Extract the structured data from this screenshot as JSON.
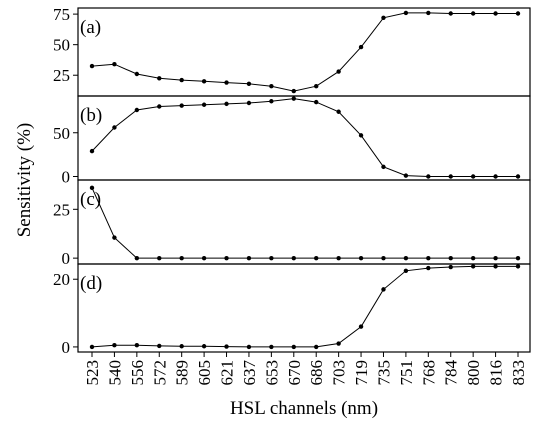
{
  "chart_data": {
    "type": "line",
    "xlabel": "HSL channels (nm)",
    "ylabel": "Sensitivity (%)",
    "categories": [
      "523",
      "540",
      "556",
      "572",
      "589",
      "605",
      "621",
      "637",
      "653",
      "670",
      "686",
      "703",
      "719",
      "735",
      "751",
      "768",
      "784",
      "800",
      "816",
      "833"
    ],
    "panels": [
      {
        "label": "(a)",
        "ylim": [
          8,
          80
        ],
        "yticks": [
          25,
          50,
          75
        ],
        "values": [
          32.5,
          34,
          26,
          22.5,
          21,
          20,
          19,
          18,
          16,
          12,
          16,
          28,
          48,
          72,
          76,
          76,
          75.5,
          75.5,
          75.5,
          75.5
        ]
      },
      {
        "label": "(b)",
        "ylim": [
          -4,
          92
        ],
        "yticks": [
          0,
          50
        ],
        "values": [
          29,
          56,
          76,
          80,
          81,
          82,
          83,
          84,
          86,
          89,
          85,
          74,
          47,
          11,
          1,
          0,
          0,
          0,
          0,
          0
        ]
      },
      {
        "label": "(c)",
        "ylim": [
          -3,
          40
        ],
        "yticks": [
          0,
          25
        ],
        "values": [
          36,
          10.5,
          0,
          0,
          0,
          0,
          0,
          0,
          0,
          0,
          0,
          0,
          0,
          0,
          0,
          0,
          0,
          0,
          0,
          0
        ]
      },
      {
        "label": "(d)",
        "ylim": [
          -1.5,
          24.5
        ],
        "yticks": [
          0,
          20
        ],
        "values": [
          0,
          0.5,
          0.5,
          0.3,
          0.2,
          0.2,
          0.1,
          0,
          0,
          0,
          0,
          1,
          6,
          17,
          22.5,
          23.3,
          23.6,
          23.8,
          23.8,
          23.8
        ]
      }
    ]
  }
}
